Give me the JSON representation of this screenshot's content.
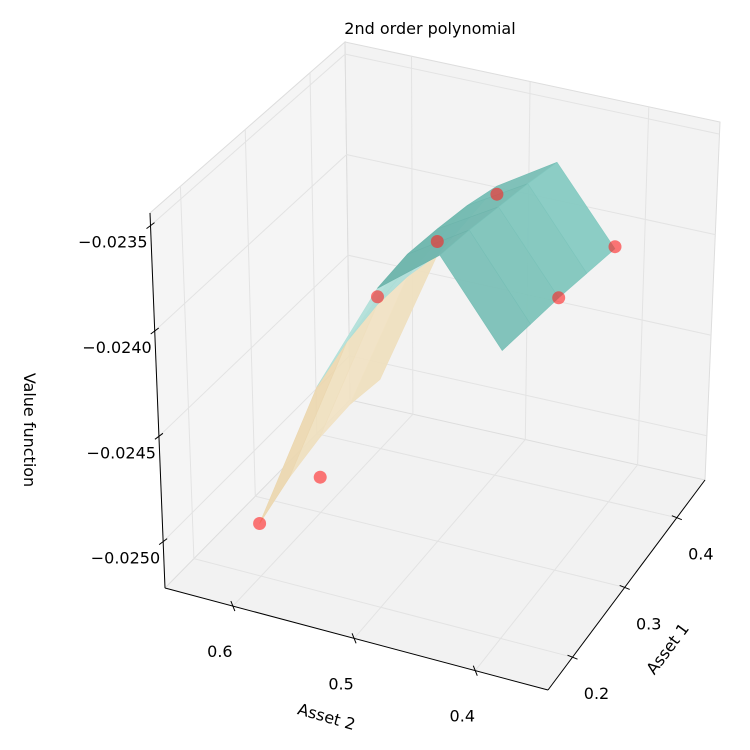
{
  "chart_data": {
    "type": "surface3d",
    "title": "2nd order polynomial",
    "xlabel": "Asset 1",
    "ylabel": "Asset 2",
    "zlabel": "Value function",
    "xlim": [
      0.153,
      0.454
    ],
    "ylim": [
      0.34,
      0.656
    ],
    "zlim": [
      -0.02522,
      -0.02344
    ],
    "xticks": [
      0.2,
      0.3,
      0.4
    ],
    "yticks": [
      0.4,
      0.5,
      0.6
    ],
    "zticks": [
      {
        "value": -0.0235,
        "label": "−0.0235"
      },
      {
        "value": -0.024,
        "label": "−0.0240"
      },
      {
        "value": -0.0245,
        "label": "−0.0245"
      },
      {
        "value": -0.025,
        "label": "−0.0250"
      }
    ],
    "grid": true,
    "pane_color": "#f2f2f2",
    "grid_color": "#e3e3e3",
    "surface": {
      "x": [
        0.2,
        0.25,
        0.3,
        0.35,
        0.4
      ],
      "y": [
        0.4,
        0.45,
        0.5,
        0.55,
        0.6
      ],
      "z": [
        [
          -0.02388,
          -0.0239,
          -0.02392,
          -0.02395,
          -0.02398
        ],
        [
          -0.0235,
          -0.02352,
          -0.02355,
          -0.02358,
          -0.02362
        ],
        [
          -0.02372,
          -0.0237,
          -0.02372,
          -0.02375,
          -0.0238
        ],
        [
          -0.02425,
          -0.02418,
          -0.02415,
          -0.02416,
          -0.0242
        ],
        [
          -0.02497,
          -0.0249,
          -0.02486,
          -0.02485,
          -0.02488
        ]
      ],
      "colormap": [
        "#a97c50",
        "#e2c792",
        "#fbf5e6",
        "#d3efeb",
        "#84cbc2",
        "#5ea59c"
      ]
    },
    "points": {
      "color": "#ff2020",
      "x": [
        0.2,
        0.3,
        0.2,
        0.3,
        0.4,
        0.3,
        0.4
      ],
      "y": [
        0.6,
        0.6,
        0.5,
        0.5,
        0.5,
        0.4,
        0.4
      ],
      "z": [
        -0.02497,
        -0.02505,
        -0.02376,
        -0.02378,
        -0.02384,
        -0.02392,
        -0.02397
      ]
    }
  }
}
